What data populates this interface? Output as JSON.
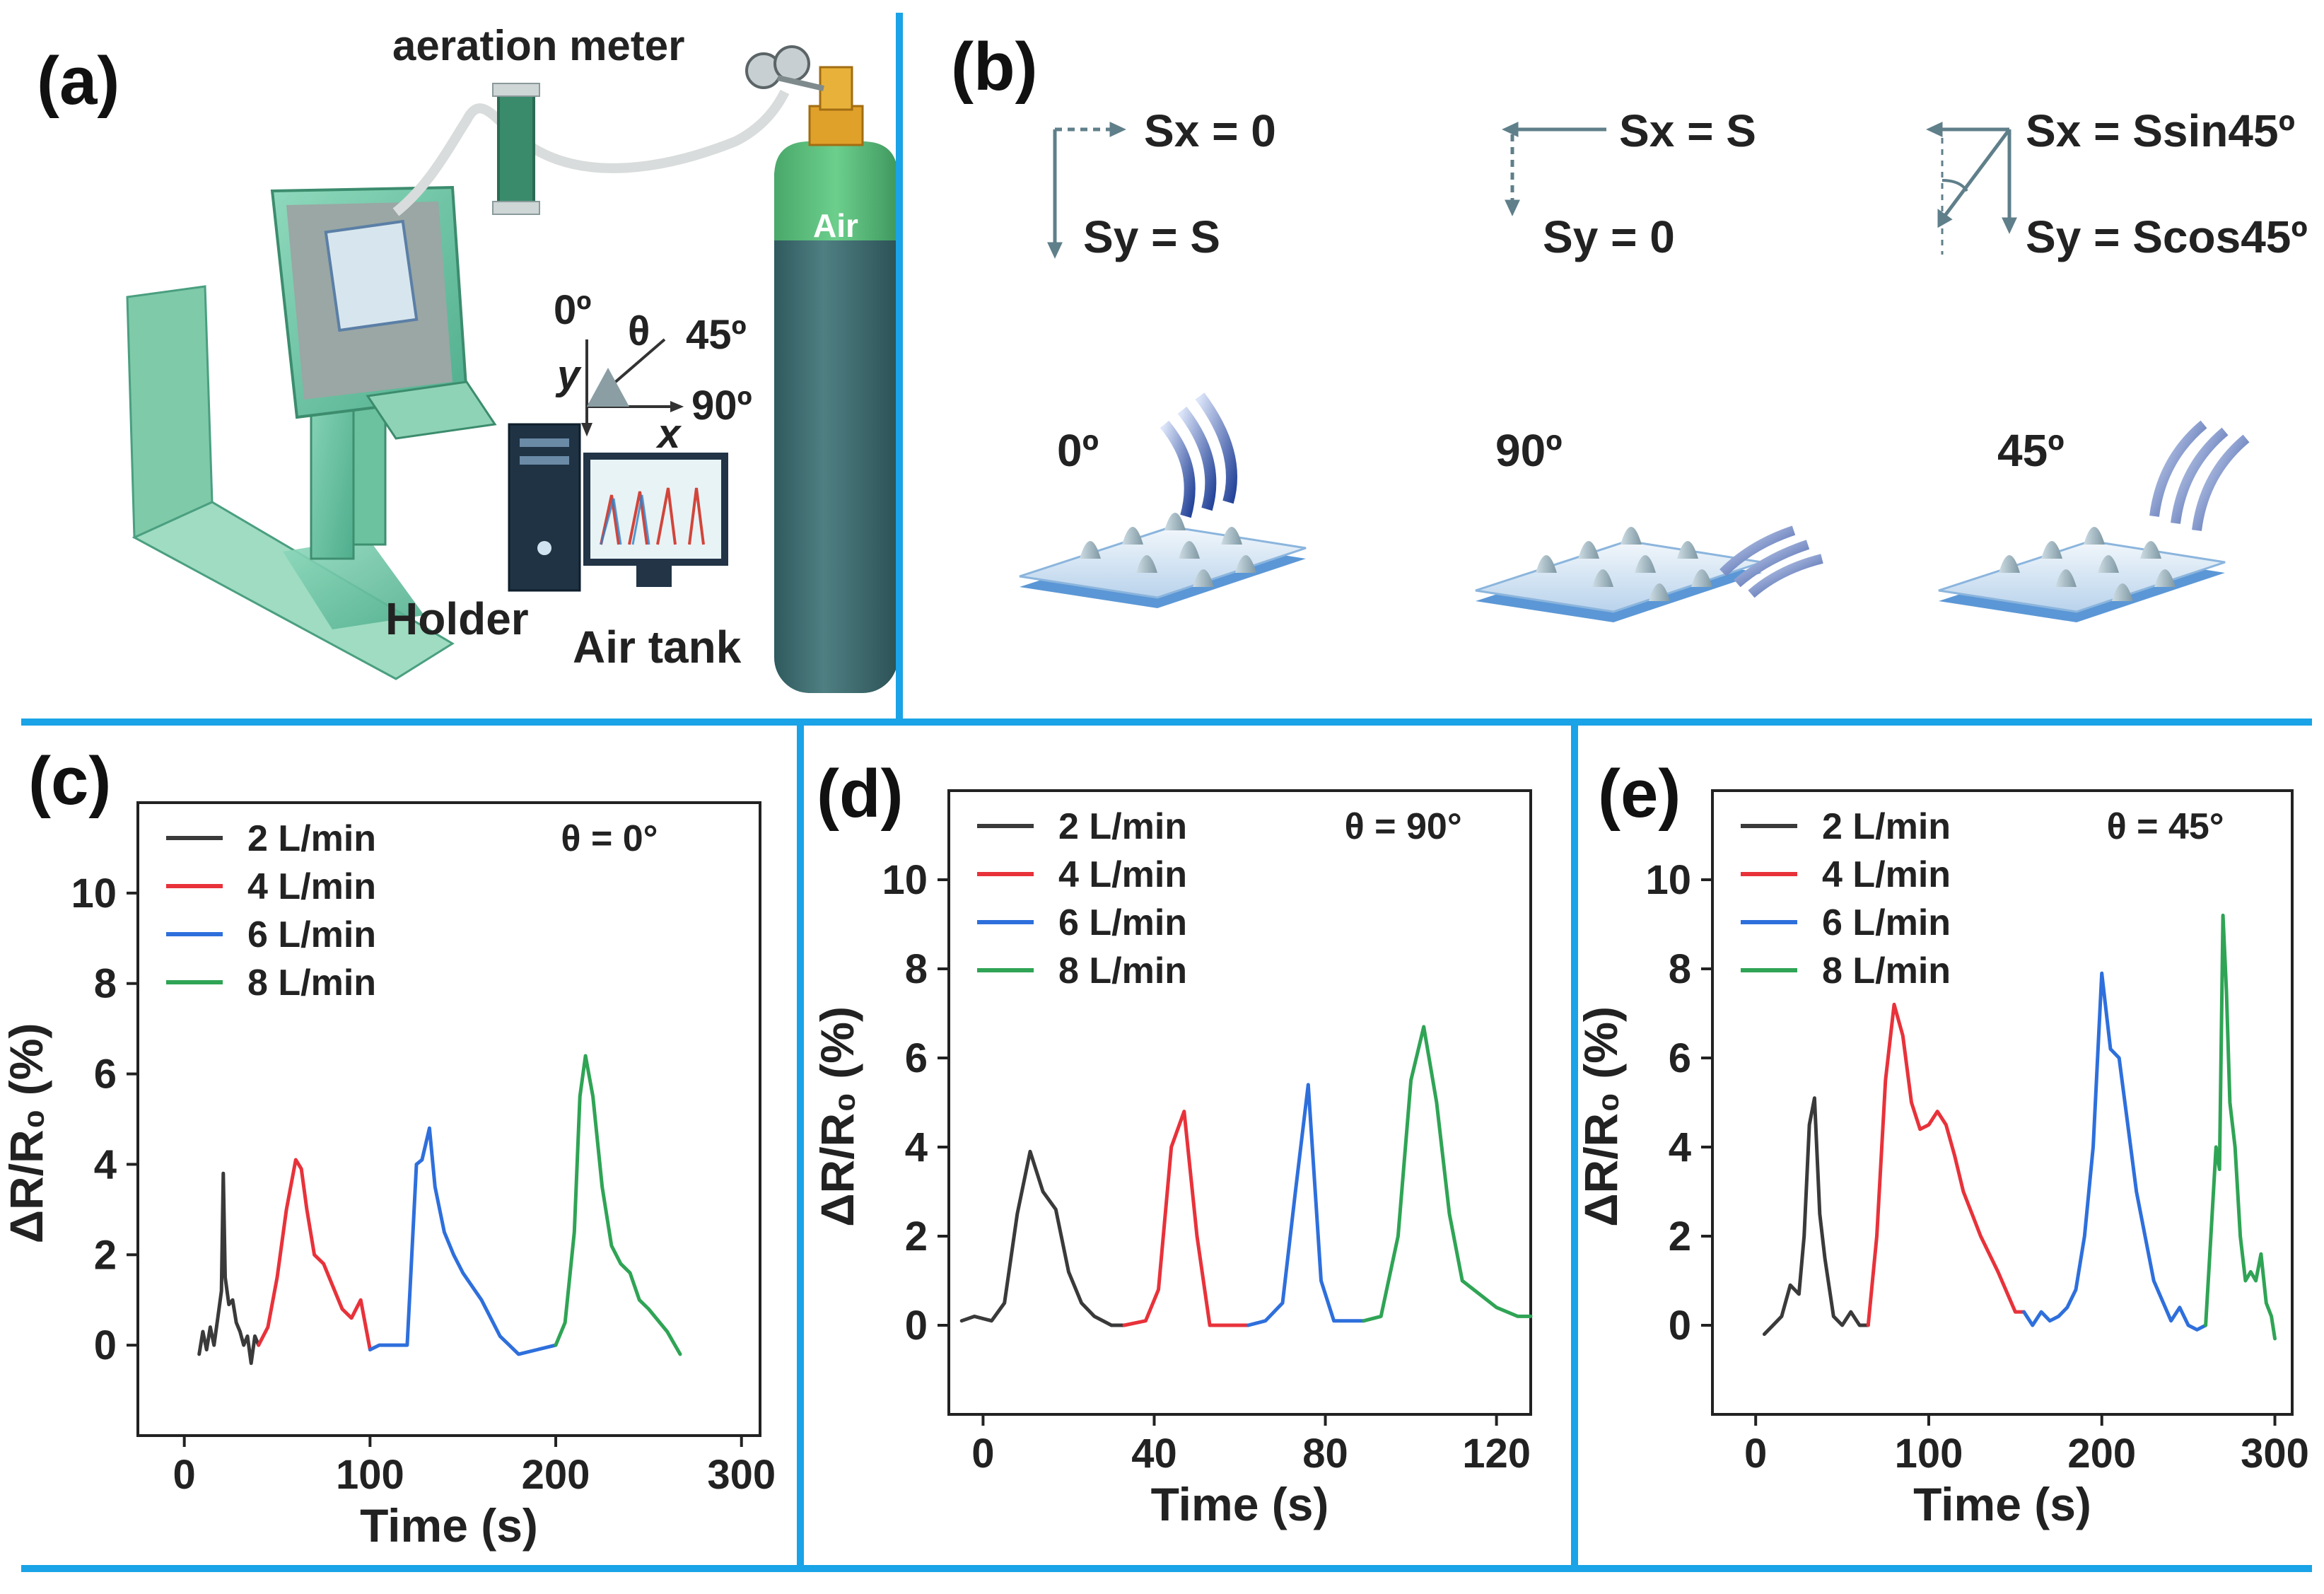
{
  "figure": {
    "panel_a": {
      "label": "(a)",
      "aeration_meter": "aeration meter",
      "air_label": "Air",
      "holder": "Holder",
      "air_tank": "Air tank",
      "angle_0": "0º",
      "angle_45": "45º",
      "angle_90": "90º",
      "theta": "θ",
      "axis_x": "x",
      "axis_y": "y"
    },
    "panel_b": {
      "label": "(b)",
      "case_0": {
        "sx": "Sx = 0",
        "sy": "Sy = S",
        "angle": "0º"
      },
      "case_90": {
        "sx": "Sx = S",
        "sy": "Sy = 0",
        "angle": "90º"
      },
      "case_45": {
        "sx": "Sx = Ssin45º",
        "sy": "Sy = Scos45º",
        "angle": "45º"
      }
    },
    "colors": {
      "divider": "#1aa3e6",
      "series": [
        "#3a3a3a",
        "#e8323a",
        "#2e6fdc",
        "#2fa455"
      ]
    }
  },
  "chart_data": [
    {
      "type": "line",
      "label": "(c)",
      "annotation": "θ = 0°",
      "xlabel": "Time (s)",
      "ylabel": "ΔR/R₀ (%)",
      "xlim": [
        -25,
        310
      ],
      "ylim": [
        -2,
        12
      ],
      "xticks": [
        0,
        100,
        200,
        300
      ],
      "xtick_labels": [
        "0",
        "100",
        "200",
        "300"
      ],
      "yticks": [
        0,
        2,
        4,
        6,
        8,
        10
      ],
      "ytick_labels": [
        "0",
        "2",
        "4",
        "6",
        "8",
        "10"
      ],
      "series": [
        {
          "name": "2 L/min",
          "x": [
            8,
            10,
            12,
            14,
            16,
            18,
            20,
            21,
            22,
            24,
            26,
            28,
            30,
            32,
            34,
            36,
            38,
            40
          ],
          "y": [
            -0.2,
            0.3,
            -0.1,
            0.4,
            0,
            0.6,
            1.2,
            3.8,
            1.5,
            0.9,
            1.0,
            0.5,
            0.3,
            0,
            0.2,
            -0.4,
            0.2,
            0
          ]
        },
        {
          "name": "4 L/min",
          "x": [
            40,
            45,
            50,
            55,
            60,
            63,
            66,
            70,
            75,
            80,
            85,
            90,
            95,
            100
          ],
          "y": [
            0,
            0.4,
            1.5,
            3.0,
            4.1,
            3.9,
            3.0,
            2.0,
            1.8,
            1.3,
            0.8,
            0.6,
            1.0,
            -0.1
          ]
        },
        {
          "name": "6 L/min",
          "x": [
            100,
            105,
            110,
            115,
            120,
            125,
            128,
            132,
            135,
            140,
            145,
            150,
            160,
            170,
            180,
            190,
            200
          ],
          "y": [
            -0.1,
            0,
            0,
            0,
            0,
            4.0,
            4.1,
            4.8,
            3.5,
            2.5,
            2.0,
            1.6,
            1.0,
            0.2,
            -0.2,
            -0.1,
            0
          ]
        },
        {
          "name": "8 L/min",
          "x": [
            200,
            205,
            210,
            213,
            216,
            220,
            225,
            230,
            235,
            240,
            245,
            250,
            260,
            267
          ],
          "y": [
            0,
            0.5,
            2.5,
            5.5,
            6.4,
            5.5,
            3.5,
            2.2,
            1.8,
            1.6,
            1.0,
            0.8,
            0.3,
            -0.2
          ]
        }
      ]
    },
    {
      "type": "line",
      "label": "(d)",
      "annotation": "θ = 90°",
      "xlabel": "Time (s)",
      "ylabel": "ΔR/R₀ (%)",
      "xlim": [
        -8,
        128
      ],
      "ylim": [
        -2,
        12
      ],
      "xticks": [
        0,
        40,
        80,
        120
      ],
      "xtick_labels": [
        "0",
        "40",
        "80",
        "120"
      ],
      "yticks": [
        0,
        2,
        4,
        6,
        8,
        10
      ],
      "ytick_labels": [
        "0",
        "2",
        "4",
        "6",
        "8",
        "10"
      ],
      "series": [
        {
          "name": "2 L/min",
          "x": [
            -5,
            -2,
            2,
            5,
            8,
            11,
            14,
            17,
            20,
            23,
            26,
            30,
            33
          ],
          "y": [
            0.1,
            0.2,
            0.1,
            0.5,
            2.5,
            3.9,
            3.0,
            2.6,
            1.2,
            0.5,
            0.2,
            0,
            0
          ]
        },
        {
          "name": "4 L/min",
          "x": [
            33,
            38,
            41,
            44,
            47,
            50,
            53,
            56,
            59,
            62
          ],
          "y": [
            0,
            0.1,
            0.8,
            4.0,
            4.8,
            2.0,
            0,
            0,
            0,
            0
          ]
        },
        {
          "name": "6 L/min",
          "x": [
            62,
            66,
            70,
            73,
            76,
            79,
            82,
            86,
            89
          ],
          "y": [
            0,
            0.1,
            0.5,
            3.0,
            5.4,
            1.0,
            0.1,
            0.1,
            0.1
          ]
        },
        {
          "name": "8 L/min",
          "x": [
            89,
            93,
            97,
            100,
            103,
            106,
            109,
            112,
            116,
            120,
            125,
            128
          ],
          "y": [
            0.1,
            0.2,
            2.0,
            5.5,
            6.7,
            5.0,
            2.5,
            1.0,
            0.7,
            0.4,
            0.2,
            0.2
          ]
        }
      ]
    },
    {
      "type": "line",
      "label": "(e)",
      "annotation": "θ = 45°",
      "xlabel": "Time (s)",
      "ylabel": "ΔR/R₀ (%)",
      "xlim": [
        -25,
        310
      ],
      "ylim": [
        -2,
        12
      ],
      "xticks": [
        0,
        100,
        200,
        300
      ],
      "xtick_labels": [
        "0",
        "100",
        "200",
        "300"
      ],
      "yticks": [
        0,
        2,
        4,
        6,
        8,
        10
      ],
      "ytick_labels": [
        "0",
        "2",
        "4",
        "6",
        "8",
        "10"
      ],
      "series": [
        {
          "name": "2 L/min",
          "x": [
            5,
            10,
            15,
            20,
            25,
            28,
            31,
            34,
            37,
            40,
            45,
            50,
            55,
            60,
            65
          ],
          "y": [
            -0.2,
            0,
            0.2,
            0.9,
            0.7,
            2.0,
            4.5,
            5.1,
            2.5,
            1.5,
            0.2,
            0,
            0.3,
            0,
            0
          ]
        },
        {
          "name": "4 L/min",
          "x": [
            65,
            70,
            75,
            80,
            85,
            90,
            95,
            100,
            105,
            110,
            115,
            120,
            125,
            130,
            140,
            150,
            155
          ],
          "y": [
            0,
            2.0,
            5.5,
            7.2,
            6.5,
            5.0,
            4.4,
            4.5,
            4.8,
            4.5,
            3.8,
            3.0,
            2.5,
            2.0,
            1.2,
            0.3,
            0.3
          ]
        },
        {
          "name": "6 L/min",
          "x": [
            155,
            160,
            165,
            170,
            175,
            180,
            185,
            190,
            195,
            200,
            205,
            210,
            215,
            220,
            230,
            240,
            245,
            250,
            255,
            260
          ],
          "y": [
            0.3,
            0,
            0.3,
            0.1,
            0.2,
            0.4,
            0.8,
            2.0,
            4.0,
            7.9,
            6.2,
            6.0,
            4.5,
            3.0,
            1.0,
            0.1,
            0.4,
            0,
            -0.1,
            0
          ]
        },
        {
          "name": "8 L/min",
          "x": [
            260,
            263,
            266,
            268,
            270,
            272,
            274,
            277,
            280,
            283,
            286,
            289,
            292,
            295,
            298,
            300
          ],
          "y": [
            0,
            2.0,
            4.0,
            3.5,
            9.2,
            7.5,
            5.0,
            4.0,
            2.0,
            1.0,
            1.2,
            1.0,
            1.6,
            0.5,
            0.2,
            -0.3
          ]
        }
      ]
    }
  ]
}
